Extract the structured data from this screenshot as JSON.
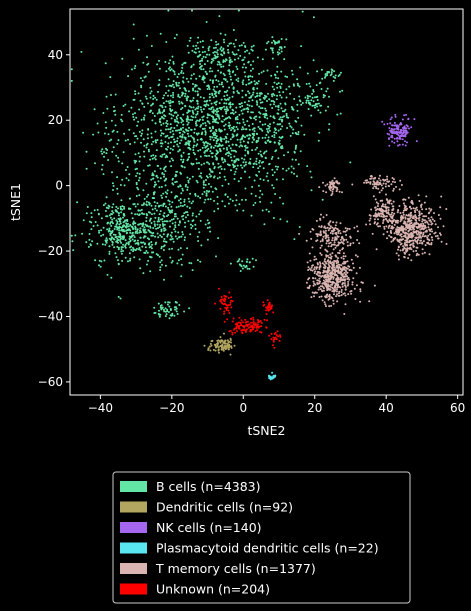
{
  "chart_data": {
    "type": "scatter",
    "xlabel": "tSNE2",
    "ylabel": "tSNE1",
    "xlim": [
      -48.5,
      61.5
    ],
    "ylim": [
      -64,
      54
    ],
    "xticks": [
      -40,
      -20,
      0,
      20,
      40,
      60
    ],
    "yticks": [
      -60,
      -40,
      -20,
      0,
      20,
      40
    ],
    "xtick_labels": [
      "−40",
      "−20",
      "0",
      "20",
      "40",
      "60"
    ],
    "ytick_labels": [
      "−60",
      "−40",
      "−20",
      "0",
      "20",
      "40"
    ],
    "grid": false,
    "legend_placement": "bottom-center, below plot",
    "background": "#000000",
    "series": [
      {
        "name": "B cells (n=4383)",
        "color": "#63e6a5",
        "n": 4383,
        "clusters": [
          {
            "cx": -10,
            "cy": 18,
            "sx": 12,
            "sy": 12,
            "w": 0.56
          },
          {
            "cx": -33,
            "cy": -14,
            "sx": 5,
            "sy": 5,
            "w": 0.14
          },
          {
            "cx": -22,
            "cy": -10,
            "sx": 6,
            "sy": 7,
            "w": 0.12
          },
          {
            "cx": 8,
            "cy": 22,
            "sx": 6,
            "sy": 8,
            "w": 0.06
          },
          {
            "cx": -6,
            "cy": 40,
            "sx": 5,
            "sy": 2.5,
            "w": 0.04
          },
          {
            "cx": 20,
            "cy": 26,
            "sx": 2,
            "sy": 2,
            "w": 0.02
          },
          {
            "cx": 9,
            "cy": 43,
            "sx": 1.5,
            "sy": 1.2,
            "w": 0.01
          },
          {
            "cx": -21,
            "cy": -38,
            "sx": 2,
            "sy": 1.5,
            "w": 0.02
          },
          {
            "cx": 0,
            "cy": -24,
            "sx": 2,
            "sy": 1,
            "w": 0.01
          },
          {
            "cx": 24,
            "cy": 34,
            "sx": 1.5,
            "sy": 1,
            "w": 0.01
          },
          {
            "cx": -38,
            "cy": 10,
            "sx": 3,
            "sy": 8,
            "w": 0.01
          }
        ]
      },
      {
        "name": "Dendritic cells (n=92)",
        "color": "#b3a660",
        "n": 92,
        "clusters": [
          {
            "cx": -6,
            "cy": -49,
            "sx": 2,
            "sy": 1,
            "w": 1
          }
        ]
      },
      {
        "name": "NK cells (n=140)",
        "color": "#a566f0",
        "n": 140,
        "clusters": [
          {
            "cx": 43.5,
            "cy": 17,
            "sx": 1.5,
            "sy": 1.8,
            "w": 1
          }
        ]
      },
      {
        "name": "Plasmacytoid dendritic cells (n=22)",
        "color": "#5ae6f0",
        "n": 22,
        "clusters": [
          {
            "cx": 8,
            "cy": -58.5,
            "sx": 0.5,
            "sy": 0.4,
            "w": 1
          }
        ]
      },
      {
        "name": "T memory cells (n=1377)",
        "color": "#d9b4b0",
        "n": 1377,
        "clusters": [
          {
            "cx": 25,
            "cy": -28,
            "sx": 3,
            "sy": 4,
            "w": 0.35
          },
          {
            "cx": 47,
            "cy": -13,
            "sx": 3.5,
            "sy": 4,
            "w": 0.38
          },
          {
            "cx": 25,
            "cy": -15,
            "sx": 3,
            "sy": 2.5,
            "w": 0.1
          },
          {
            "cx": 25,
            "cy": 0,
            "sx": 1.2,
            "sy": 1.2,
            "w": 0.04
          },
          {
            "cx": 38,
            "cy": 1,
            "sx": 2.5,
            "sy": 1,
            "w": 0.05
          },
          {
            "cx": 39,
            "cy": -8,
            "sx": 2,
            "sy": 2.5,
            "w": 0.08
          }
        ]
      },
      {
        "name": "Unknown (n=204)",
        "color": "#ff0000",
        "n": 204,
        "clusters": [
          {
            "cx": 1,
            "cy": -43,
            "sx": 2.5,
            "sy": 1.3,
            "w": 0.55
          },
          {
            "cx": -5,
            "cy": -36,
            "sx": 1,
            "sy": 1.5,
            "w": 0.2
          },
          {
            "cx": 7,
            "cy": -37,
            "sx": 0.8,
            "sy": 0.8,
            "w": 0.15
          },
          {
            "cx": 9,
            "cy": -46,
            "sx": 0.8,
            "sy": 1,
            "w": 0.1
          }
        ]
      }
    ]
  }
}
